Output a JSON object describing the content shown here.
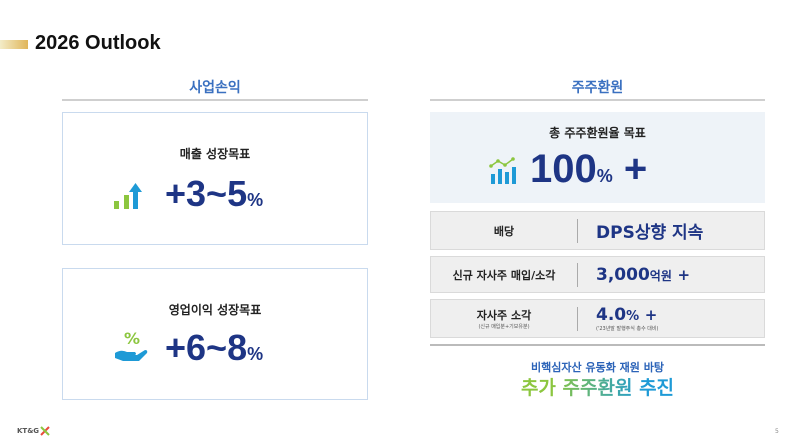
{
  "title": "2026 Outlook",
  "left": {
    "header": "사업손익",
    "revenue": {
      "label": "매출 성장목표",
      "value": "+3~5",
      "unit": "%",
      "icon": "bar-chart-up-arrow-icon"
    },
    "op_profit": {
      "label": "영업이익 성장목표",
      "value": "+6~8",
      "unit": "%",
      "icon": "hand-percent-icon"
    }
  },
  "right": {
    "header": "주주환원",
    "total": {
      "label": "총 주주환원율 목표",
      "value": "100",
      "unit": "%",
      "plus": "+",
      "icon": "bar-line-chart-icon"
    },
    "rows": [
      {
        "label": "배당",
        "value": "DPS상향 지속"
      },
      {
        "label": "신규 자사주 매입/소각",
        "value": "3,000",
        "unit": "억원",
        "plus": "+"
      },
      {
        "label": "자사주 소각",
        "sublabel": "(신규 매입분+기보유분)",
        "value": "4.0",
        "unit": "%",
        "plus": "+",
        "note": "('23년말 발행주식 총수 대비)"
      }
    ],
    "footer_sub": "비핵심자산 유동화 재원 바탕",
    "footer_main": "추가 주주환원 추진"
  },
  "logo": "KT&G",
  "page_number": "5",
  "colors": {
    "accent_blue": "#3a70c0",
    "navy": "#1e3585",
    "green": "#8cc63f",
    "sky": "#1e9ad6"
  }
}
